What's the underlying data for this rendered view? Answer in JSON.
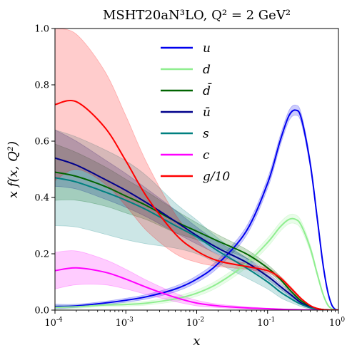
{
  "chart_data": {
    "type": "line",
    "title": "MSHT20aN³LO, Q² = 2 GeV²",
    "xlabel": "x",
    "ylabel": "x f(x, Q²)",
    "xscale": "log",
    "xlim": [
      0.0001,
      1
    ],
    "ylim": [
      0,
      1
    ],
    "x_ticks": [
      {
        "value": 0.0001,
        "base": "10",
        "exp": "-4"
      },
      {
        "value": 0.001,
        "base": "10",
        "exp": "-3"
      },
      {
        "value": 0.01,
        "base": "10",
        "exp": "-2"
      },
      {
        "value": 0.1,
        "base": "10",
        "exp": "-1"
      },
      {
        "value": 1,
        "base": "10",
        "exp": "0"
      }
    ],
    "y_ticks": [
      "0.0",
      "0.2",
      "0.4",
      "0.6",
      "0.8",
      "1.0"
    ],
    "y_tick_values": [
      0,
      0.2,
      0.4,
      0.6,
      0.8,
      1.0
    ],
    "grid": false,
    "legend_position": "top-center",
    "x": [
      0.0001,
      0.0002,
      0.0005,
      0.001,
      0.002,
      0.005,
      0.01,
      0.02,
      0.05,
      0.1,
      0.15,
      0.2,
      0.25,
      0.3,
      0.4,
      0.5,
      0.6,
      0.7,
      0.8,
      0.9,
      1.0
    ],
    "series": [
      {
        "name": "u",
        "color": "#0000ee",
        "values": [
          0.013,
          0.015,
          0.025,
          0.035,
          0.048,
          0.075,
          0.11,
          0.165,
          0.28,
          0.45,
          0.6,
          0.69,
          0.71,
          0.68,
          0.52,
          0.33,
          0.17,
          0.07,
          0.02,
          0.003,
          0
        ],
        "band": [
          0.008,
          0.006,
          0.006,
          0.007,
          0.008,
          0.01,
          0.012,
          0.014,
          0.016,
          0.018,
          0.018,
          0.018,
          0.018,
          0.017,
          0.014,
          0.01,
          0.007,
          0.004,
          0.002,
          0.001,
          0
        ]
      },
      {
        "name": "d",
        "color": "#90ee90",
        "values": [
          0.01,
          0.012,
          0.018,
          0.02,
          0.025,
          0.04,
          0.06,
          0.095,
          0.165,
          0.24,
          0.295,
          0.322,
          0.322,
          0.3,
          0.22,
          0.13,
          0.06,
          0.02,
          0.005,
          0.001,
          0
        ],
        "band": [
          0.008,
          0.006,
          0.005,
          0.006,
          0.007,
          0.009,
          0.011,
          0.013,
          0.015,
          0.016,
          0.016,
          0.016,
          0.016,
          0.015,
          0.012,
          0.008,
          0.005,
          0.003,
          0.001,
          0.0005,
          0
        ]
      },
      {
        "name": "d̄",
        "color": "#006400",
        "values": [
          0.49,
          0.475,
          0.44,
          0.405,
          0.37,
          0.315,
          0.28,
          0.245,
          0.2,
          0.15,
          0.11,
          0.075,
          0.05,
          0.032,
          0.013,
          0.005,
          0.002,
          0.0005,
          0,
          0,
          0
        ],
        "band": [
          0.1,
          0.085,
          0.07,
          0.06,
          0.05,
          0.04,
          0.03,
          0.022,
          0.016,
          0.012,
          0.01,
          0.008,
          0.006,
          0.005,
          0.003,
          0.002,
          0.001,
          0,
          0,
          0,
          0
        ]
      },
      {
        "name": "ū",
        "color": "#00008b",
        "values": [
          0.54,
          0.515,
          0.465,
          0.425,
          0.38,
          0.315,
          0.265,
          0.22,
          0.17,
          0.12,
          0.085,
          0.06,
          0.04,
          0.025,
          0.01,
          0.004,
          0.0015,
          0.0003,
          0,
          0,
          0
        ],
        "band": [
          0.1,
          0.085,
          0.07,
          0.06,
          0.05,
          0.04,
          0.03,
          0.022,
          0.016,
          0.012,
          0.01,
          0.008,
          0.006,
          0.005,
          0.003,
          0.002,
          0.001,
          0,
          0,
          0,
          0
        ]
      },
      {
        "name": "s",
        "color": "#008080",
        "values": [
          0.47,
          0.455,
          0.42,
          0.39,
          0.355,
          0.3,
          0.26,
          0.21,
          0.15,
          0.1,
          0.065,
          0.045,
          0.03,
          0.02,
          0.008,
          0.003,
          0.001,
          0,
          0,
          0,
          0
        ],
        "band": [
          0.17,
          0.16,
          0.15,
          0.14,
          0.12,
          0.08,
          0.06,
          0.045,
          0.035,
          0.025,
          0.02,
          0.015,
          0.01,
          0.008,
          0.005,
          0.002,
          0.001,
          0,
          0,
          0,
          0
        ]
      },
      {
        "name": "c",
        "color": "#ff00ff",
        "values": [
          0.14,
          0.15,
          0.135,
          0.11,
          0.08,
          0.045,
          0.025,
          0.015,
          0.008,
          0.005,
          0.003,
          0.002,
          0.0015,
          0.001,
          0.0005,
          0,
          0,
          0,
          0,
          0,
          0
        ],
        "band": [
          0.065,
          0.06,
          0.045,
          0.035,
          0.025,
          0.015,
          0.01,
          0.006,
          0.004,
          0.002,
          0.0015,
          0.001,
          0.0008,
          0.0005,
          0.0003,
          0,
          0,
          0,
          0,
          0,
          0
        ]
      },
      {
        "name": "g/10",
        "color": "#ff0000",
        "values": [
          0.73,
          0.74,
          0.65,
          0.53,
          0.4,
          0.27,
          0.21,
          0.175,
          0.155,
          0.14,
          0.115,
          0.085,
          0.06,
          0.04,
          0.016,
          0.006,
          0.002,
          0.0005,
          0,
          0,
          0
        ],
        "band": [
          0.27,
          0.24,
          0.2,
          0.16,
          0.12,
          0.07,
          0.04,
          0.02,
          0.01,
          0.008,
          0.006,
          0.005,
          0.004,
          0.003,
          0.002,
          0.001,
          0.0005,
          0,
          0,
          0,
          0
        ]
      }
    ]
  }
}
